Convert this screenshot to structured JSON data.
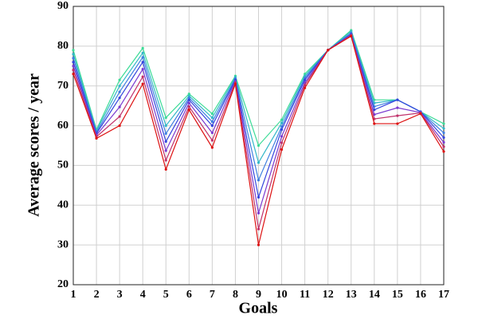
{
  "chart_data": {
    "type": "line",
    "x_label": "Goals",
    "y_label": "Average scores / year",
    "x": [
      1,
      2,
      3,
      4,
      5,
      6,
      7,
      8,
      9,
      10,
      11,
      12,
      13,
      14,
      15,
      16,
      17
    ],
    "xlim": [
      1,
      17
    ],
    "xticks": [
      1,
      2,
      3,
      4,
      5,
      6,
      7,
      8,
      9,
      10,
      11,
      12,
      13,
      14,
      15,
      16,
      17
    ],
    "ylim": [
      20,
      90
    ],
    "yticks": [
      20,
      30,
      40,
      50,
      60,
      70,
      80,
      90
    ],
    "grid": true,
    "series": [
      {
        "color": "#3ddc97",
        "values": [
          79,
          59,
          71.5,
          79.5,
          62,
          68,
          63,
          72.5,
          55,
          61.5,
          73,
          79,
          84,
          66.5,
          66.5,
          63.5,
          60.5
        ]
      },
      {
        "color": "#33b8c8",
        "values": [
          78,
          58.7,
          70,
          78.3,
          60,
          67.5,
          62,
          72.2,
          50.7,
          60.7,
          72.5,
          79,
          83.7,
          65.7,
          66.5,
          63.5,
          59.3
        ]
      },
      {
        "color": "#3f7fe0",
        "values": [
          77,
          58.3,
          68.5,
          77.2,
          58,
          67,
          61,
          71.8,
          46.3,
          59.8,
          72,
          79,
          83.3,
          64.8,
          66.5,
          63.5,
          58.2
        ]
      },
      {
        "color": "#3344dd",
        "values": [
          76,
          58,
          67,
          76,
          56,
          66.5,
          60,
          71.5,
          42,
          59,
          71.5,
          79,
          83,
          64,
          66.5,
          63.5,
          57
        ]
      },
      {
        "color": "#7a3ad0",
        "values": [
          75,
          57.6,
          64.7,
          74.2,
          53.7,
          65.7,
          58.2,
          71.2,
          38,
          57.3,
          70.8,
          79,
          82.8,
          62.8,
          64.5,
          63.3,
          55.8
        ]
      },
      {
        "color": "#c0306a",
        "values": [
          74,
          57.2,
          62.3,
          72.3,
          51.3,
          64.8,
          56.3,
          70.8,
          34,
          55.7,
          70.2,
          79,
          82.7,
          61.7,
          62.5,
          63.2,
          54.7
        ]
      },
      {
        "color": "#dd1111",
        "values": [
          73,
          56.8,
          60,
          70.5,
          49,
          64,
          54.5,
          70.5,
          30,
          54,
          69.5,
          79,
          82.5,
          60.5,
          60.5,
          63,
          53.5
        ]
      }
    ]
  }
}
